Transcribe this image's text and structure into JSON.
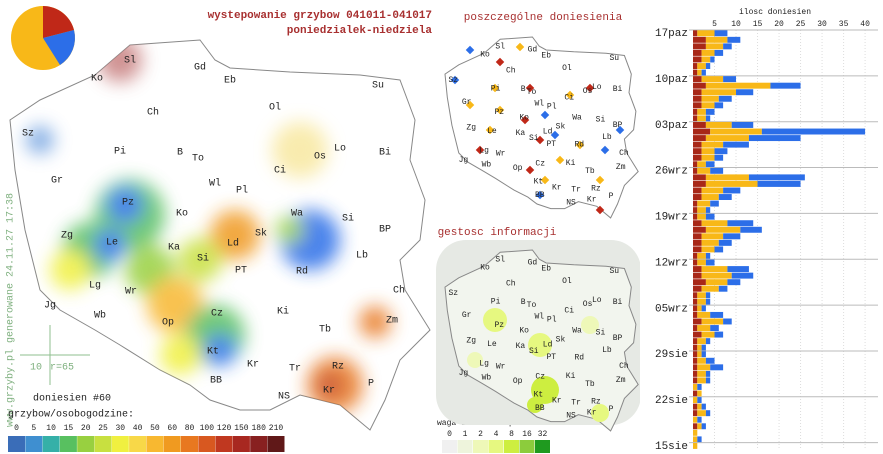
{
  "title": "wystepowanie grzybow 041011-041017",
  "subtitle": "poniedzialek-niedziela",
  "watermark": "www.grzyby.pl generowane 24.11.27 17:38",
  "scale_note": {
    "distance": "10",
    "radius": "r=65"
  },
  "report_count": "doniesien #60",
  "legend": {
    "title": "grzybow/osobogodzine:",
    "labels": [
      0,
      5,
      10,
      15,
      20,
      25,
      30,
      40,
      50,
      60,
      80,
      100,
      120,
      150,
      180,
      210
    ],
    "colors": [
      "#3a6db8",
      "#3f8fd0",
      "#35b0a8",
      "#58c060",
      "#98d040",
      "#c8e040",
      "#f0f040",
      "#f8d848",
      "#f8b830",
      "#f09a20",
      "#e87820",
      "#d85820",
      "#c03820",
      "#a82820",
      "#882020",
      "#601818"
    ]
  },
  "regions": [
    "Sl",
    "Gd",
    "Ko",
    "Eb",
    "Su",
    "Ol",
    "Ch",
    "Sz",
    "Pi",
    "B",
    "To",
    "Os",
    "Lo",
    "Bi",
    "Gr",
    "Wl",
    "Pl",
    "Ci",
    "Pz",
    "Ko",
    "Wa",
    "Si",
    "BP",
    "Zg",
    "Le",
    "Ka",
    "Ld",
    "Sk",
    "Si",
    "PT",
    "Rd",
    "Lb",
    "Lg",
    "Wr",
    "Ch",
    "Jg",
    "Wb",
    "Ki",
    "Op",
    "Cz",
    "Zm",
    "Tb",
    "Kt",
    "Kr",
    "Tr",
    "Rz",
    "Kr",
    "P",
    "NS",
    "BB"
  ],
  "map_reports": {
    "title": "poszczególne doniesienia"
  },
  "map_density": {
    "title": "gestosc informacji",
    "legend": {
      "title": "waga doniesien/px",
      "labels": [
        0,
        1,
        2,
        4,
        8,
        16,
        32
      ],
      "colors": [
        "#f0f0f0",
        "#eef4dc",
        "#eef8b8",
        "#e6f880",
        "#cdee40",
        "#8ccc3c",
        "#1f9a1f"
      ]
    }
  },
  "chart_data": {
    "type": "bar",
    "orientation": "horizontal",
    "title": "ilosc doniesien",
    "categories": [
      "17paz",
      null,
      null,
      null,
      null,
      null,
      null,
      "10paz",
      null,
      null,
      null,
      null,
      null,
      null,
      "03paz",
      null,
      null,
      null,
      null,
      null,
      null,
      "26wrz",
      null,
      null,
      null,
      null,
      null,
      null,
      "19wrz",
      null,
      null,
      null,
      null,
      null,
      null,
      "12wrz",
      null,
      null,
      null,
      null,
      null,
      null,
      "05wrz",
      null,
      null,
      null,
      null,
      null,
      null,
      "29sie",
      null,
      null,
      null,
      null,
      null,
      null,
      "22sie",
      null,
      null,
      null,
      null,
      null,
      null,
      "15sie"
    ],
    "series": [
      {
        "color": "#a82818",
        "values": [
          1,
          3,
          3,
          2,
          2,
          1,
          1,
          2,
          3,
          2,
          2,
          2,
          1,
          1,
          3,
          4,
          3,
          2,
          2,
          2,
          1,
          1,
          3,
          3,
          2,
          2,
          1,
          1,
          1,
          2,
          3,
          2,
          2,
          2,
          1,
          1,
          2,
          2,
          3,
          2,
          1,
          1,
          1,
          1,
          2,
          1,
          2,
          1,
          1,
          1,
          1,
          1,
          1,
          1,
          0,
          1,
          0,
          1,
          1,
          0,
          1,
          0,
          0,
          0
        ]
      },
      {
        "color": "#f8b818",
        "values": [
          4,
          5,
          4,
          3,
          2,
          2,
          1,
          5,
          15,
          8,
          4,
          3,
          2,
          2,
          6,
          12,
          10,
          5,
          3,
          3,
          2,
          3,
          10,
          12,
          5,
          4,
          3,
          2,
          2,
          6,
          8,
          5,
          4,
          3,
          2,
          2,
          6,
          7,
          5,
          4,
          2,
          2,
          1,
          3,
          5,
          3,
          3,
          2,
          1,
          1,
          2,
          3,
          2,
          2,
          1,
          1,
          1,
          1,
          2,
          1,
          1,
          1,
          1,
          1
        ]
      },
      {
        "color": "#2c6ee8",
        "values": [
          3,
          3,
          2,
          2,
          1,
          1,
          1,
          3,
          7,
          4,
          3,
          2,
          2,
          1,
          5,
          24,
          12,
          6,
          3,
          2,
          2,
          3,
          13,
          10,
          4,
          3,
          2,
          1,
          2,
          6,
          5,
          4,
          3,
          2,
          1,
          2,
          5,
          5,
          3,
          2,
          1,
          1,
          1,
          3,
          2,
          2,
          2,
          1,
          1,
          1,
          2,
          3,
          1,
          1,
          1,
          0,
          1,
          1,
          1,
          1,
          1,
          0,
          1,
          0
        ]
      }
    ],
    "xlim": [
      0,
      43
    ],
    "xticks": [
      5,
      10,
      15,
      20,
      25,
      30,
      35,
      40
    ]
  }
}
